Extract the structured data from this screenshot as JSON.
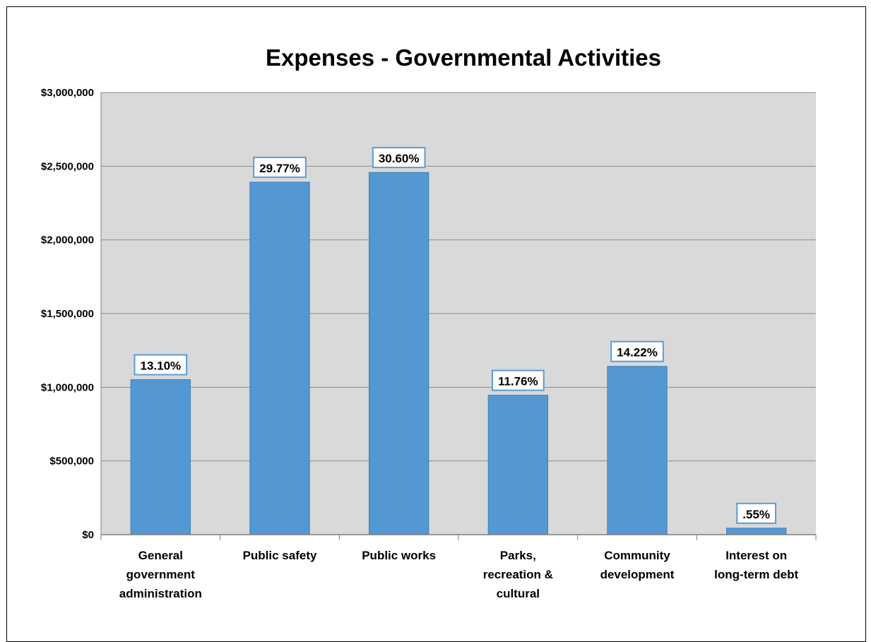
{
  "chart_data": {
    "type": "bar",
    "title": "Expenses - Governmental Activities",
    "categories": [
      [
        "General",
        "government",
        "administration"
      ],
      [
        "Public safety"
      ],
      [
        "Public works"
      ],
      [
        "Parks,",
        "recreation &",
        "cultural"
      ],
      [
        "Community",
        "development"
      ],
      [
        "Interest on",
        "long-term debt"
      ]
    ],
    "values": [
      1052000,
      2392000,
      2458000,
      946000,
      1142000,
      44000
    ],
    "data_labels": [
      "13.10%",
      "29.77%",
      "30.60%",
      "11.76%",
      "14.22%",
      ".55%"
    ],
    "ylim": [
      0,
      3000000
    ],
    "yticks": [
      0,
      500000,
      1000000,
      1500000,
      2000000,
      2500000,
      3000000
    ],
    "ytick_labels": [
      "$0",
      "$500,000",
      "$1,000,000",
      "$1,500,000",
      "$2,000,000",
      "$2,500,000",
      "$3,000,000"
    ],
    "xlabel": "",
    "ylabel": "",
    "grid": true,
    "legend": "none",
    "colors": {
      "bar": "#5498d3",
      "bar_border": "#3f7fb8",
      "plot_bg": "#d9d9d9",
      "gridline": "#8c8c8c",
      "label_box_border": "#5b9bd5"
    }
  }
}
